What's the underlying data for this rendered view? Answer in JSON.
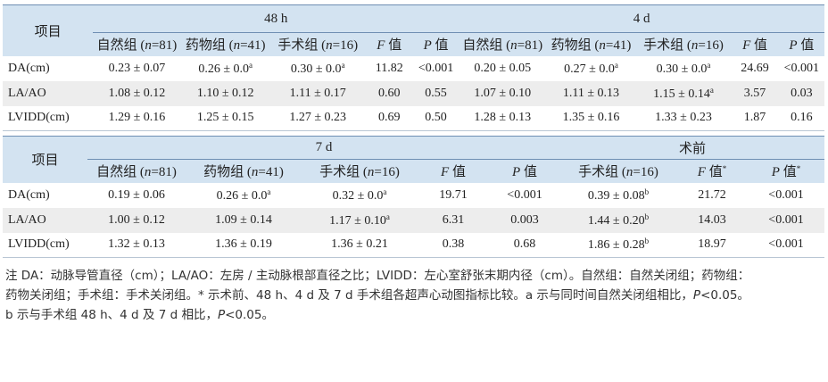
{
  "table1": {
    "group_headers": [
      "项目",
      "48 h",
      "4 d"
    ],
    "columns": [
      "自然组 (n=81)",
      "药物组 (n=41)",
      "手术组 (n=16)",
      "F 值",
      "P 值",
      "自然组 (n=81)",
      "药物组 (n=41)",
      "手术组 (n=16)",
      "F 值",
      "P 值"
    ],
    "rows": [
      {
        "label": "DA(cm)",
        "cells": [
          "0.23 ± 0.07",
          {
            "text": "0.26 ± 0.0",
            "sup": "a"
          },
          {
            "text": "0.30 ± 0.0",
            "sup": "a"
          },
          "11.82",
          "<0.001",
          "0.20 ± 0.05",
          {
            "text": "0.27 ± 0.0",
            "sup": "a"
          },
          {
            "text": "0.30 ± 0.0",
            "sup": "a"
          },
          "24.69",
          "<0.001"
        ]
      },
      {
        "label": "LA/AO",
        "cells": [
          "1.08 ± 0.12",
          "1.10 ± 0.12",
          "1.11 ± 0.17",
          "0.60",
          "0.55",
          "1.07 ± 0.10",
          "1.11 ± 0.13",
          {
            "text": "1.15 ± 0.14",
            "sup": "a"
          },
          "3.57",
          "0.03"
        ]
      },
      {
        "label": "LVIDD(cm)",
        "cells": [
          "1.29 ± 0.16",
          "1.25 ± 0.15",
          "1.27 ± 0.23",
          "0.69",
          "0.50",
          "1.28 ± 0.13",
          "1.35 ± 0.16",
          "1.33 ± 0.23",
          "1.87",
          "0.16"
        ]
      }
    ]
  },
  "table2": {
    "group_headers": [
      "项目",
      "7 d",
      "术前"
    ],
    "columns": [
      "自然组 (n=81)",
      "药物组 (n=41)",
      "手术组 (n=16)",
      "F 值",
      "P 值",
      "手术组 (n=16)",
      {
        "text": "F 值",
        "sup": "*"
      },
      {
        "text": "P 值",
        "sup": "*"
      }
    ],
    "rows": [
      {
        "label": "DA(cm)",
        "cells": [
          "0.19 ± 0.06",
          {
            "text": "0.26 ± 0.0",
            "sup": "a"
          },
          {
            "text": "0.32 ± 0.0",
            "sup": "a"
          },
          "19.71",
          "<0.001",
          {
            "text": "0.39 ± 0.08",
            "sup": "b"
          },
          "21.72",
          "<0.001"
        ]
      },
      {
        "label": "LA/AO",
        "cells": [
          "1.00 ± 0.12",
          "1.09 ± 0.14",
          {
            "text": "1.17 ± 0.10",
            "sup": "a"
          },
          "6.31",
          "0.003",
          {
            "text": "1.44 ± 0.20",
            "sup": "b"
          },
          "14.03",
          "<0.001"
        ]
      },
      {
        "label": "LVIDD(cm)",
        "cells": [
          "1.32 ± 0.13",
          "1.36 ± 0.19",
          "1.36 ± 0.21",
          "0.38",
          "0.68",
          {
            "text": "1.86 ± 0.28",
            "sup": "b"
          },
          "18.97",
          "<0.001"
        ]
      }
    ]
  },
  "note": [
    "注 DA：动脉导管直径（cm）；LA/AO：左房 / 主动脉根部直径之比；LVIDD：左心室舒张末期内径（cm）。自然组：自然关闭组；药物组：",
    "药物关闭组；手术组：手术关闭组。* 示术前、48 h、4 d 及 7 d 手术组各超声心动图指标比较。a 示与同时间自然关闭组相比，P<0.05。",
    "b 示与手术组 48 h、4 d 及 7 d 相比，P<0.05。"
  ]
}
